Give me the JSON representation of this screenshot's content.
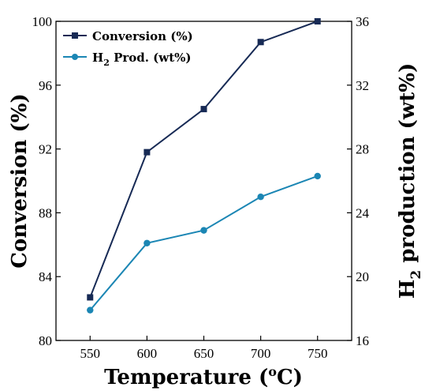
{
  "chart_data": {
    "type": "line",
    "x": [
      550,
      600,
      650,
      700,
      750
    ],
    "xlim": [
      520,
      780
    ],
    "xlabel": "Temperature (°C)",
    "xlabel_parts": {
      "main": "Temperature (",
      "sup": "o",
      "end": "C)"
    },
    "ylabel_left": "Conversion (%)",
    "ylabel_right": "H2 production (wt%)",
    "ylabel_right_parts": {
      "main": "H",
      "sub": "2",
      "end": " production (wt%)"
    },
    "ylim_left": [
      80,
      100
    ],
    "ylim_right": [
      16,
      36
    ],
    "xticks": [
      "550",
      "600",
      "650",
      "700",
      "750"
    ],
    "yticks_left": [
      "80",
      "84",
      "88",
      "92",
      "96",
      "100"
    ],
    "yticks_right": [
      "16",
      "20",
      "24",
      "28",
      "32",
      "36"
    ],
    "series": [
      {
        "name": "Conversion (%)",
        "axis": "left",
        "marker": "square",
        "color": "#172a55",
        "values": [
          82.7,
          91.8,
          94.5,
          98.7,
          100.0
        ]
      },
      {
        "name": "H2 Prod. (wt%)",
        "name_parts": {
          "main": "H",
          "sub": "2",
          "end": " Prod. (wt%)"
        },
        "axis": "right",
        "marker": "circle",
        "color": "#1b86b4",
        "values": [
          17.9,
          22.1,
          22.9,
          25.0,
          26.3
        ]
      }
    ],
    "legend_position": "top-left",
    "grid": false
  }
}
